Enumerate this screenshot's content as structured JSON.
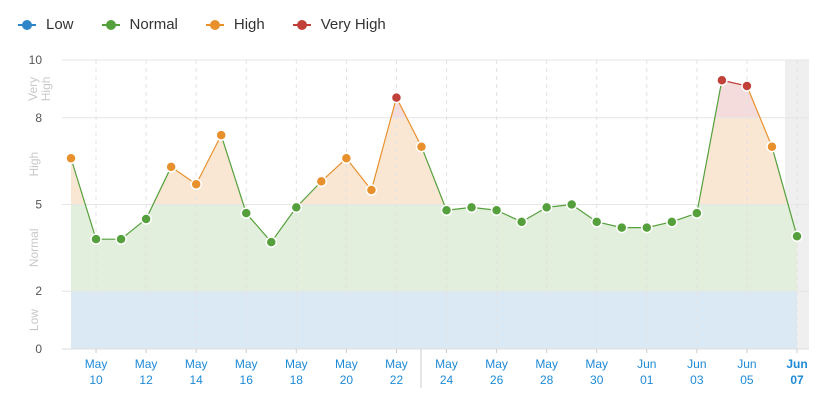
{
  "legend": [
    {
      "label": "Low",
      "color": "#2e86c8"
    },
    {
      "label": "Normal",
      "color": "#55a03c"
    },
    {
      "label": "High",
      "color": "#e8912c"
    },
    {
      "label": "Very High",
      "color": "#c1403a"
    }
  ],
  "chart_data": {
    "type": "area",
    "ylim": [
      0,
      10
    ],
    "y_ticks": [
      0,
      2,
      5,
      8,
      10
    ],
    "bands": [
      {
        "name": "Low",
        "from": 0,
        "to": 2,
        "color": "#dbe9f5"
      },
      {
        "name": "Normal",
        "from": 2,
        "to": 5,
        "color": "#e2efdc"
      },
      {
        "name": "High",
        "from": 5,
        "to": 8,
        "color": "#f9e7d3"
      },
      {
        "name": "Very High",
        "from": 8,
        "to": 10,
        "color": "#f5dcdc"
      }
    ],
    "band_labels": [
      "Low",
      "Normal",
      "High",
      "Very High"
    ],
    "x_tick_labels": [
      {
        "month": "May",
        "day": "10"
      },
      {
        "month": "May",
        "day": "12"
      },
      {
        "month": "May",
        "day": "14"
      },
      {
        "month": "May",
        "day": "16"
      },
      {
        "month": "May",
        "day": "18"
      },
      {
        "month": "May",
        "day": "20"
      },
      {
        "month": "May",
        "day": "22"
      },
      {
        "month": "May",
        "day": "24"
      },
      {
        "month": "May",
        "day": "26"
      },
      {
        "month": "May",
        "day": "28"
      },
      {
        "month": "May",
        "day": "30"
      },
      {
        "month": "Jun",
        "day": "01"
      },
      {
        "month": "Jun",
        "day": "03"
      },
      {
        "month": "Jun",
        "day": "05"
      },
      {
        "month": "Jun",
        "day": "07"
      }
    ],
    "dates": [
      "May 09",
      "May 10",
      "May 11",
      "May 12",
      "May 13",
      "May 14",
      "May 15",
      "May 16",
      "May 17",
      "May 18",
      "May 19",
      "May 20",
      "May 21",
      "May 22",
      "May 23",
      "May 24",
      "May 25",
      "May 26",
      "May 27",
      "May 28",
      "May 29",
      "May 30",
      "May 31",
      "Jun 01",
      "Jun 02",
      "Jun 03",
      "Jun 04",
      "Jun 05",
      "Jun 06",
      "Jun 07"
    ],
    "values": [
      6.6,
      3.8,
      3.8,
      4.5,
      6.3,
      5.7,
      7.4,
      4.7,
      3.7,
      4.9,
      5.8,
      6.6,
      5.5,
      8.7,
      7.0,
      4.8,
      4.9,
      4.8,
      4.4,
      4.9,
      5.0,
      4.4,
      4.2,
      4.2,
      4.4,
      4.7,
      9.3,
      9.1,
      7.0,
      3.9
    ]
  }
}
